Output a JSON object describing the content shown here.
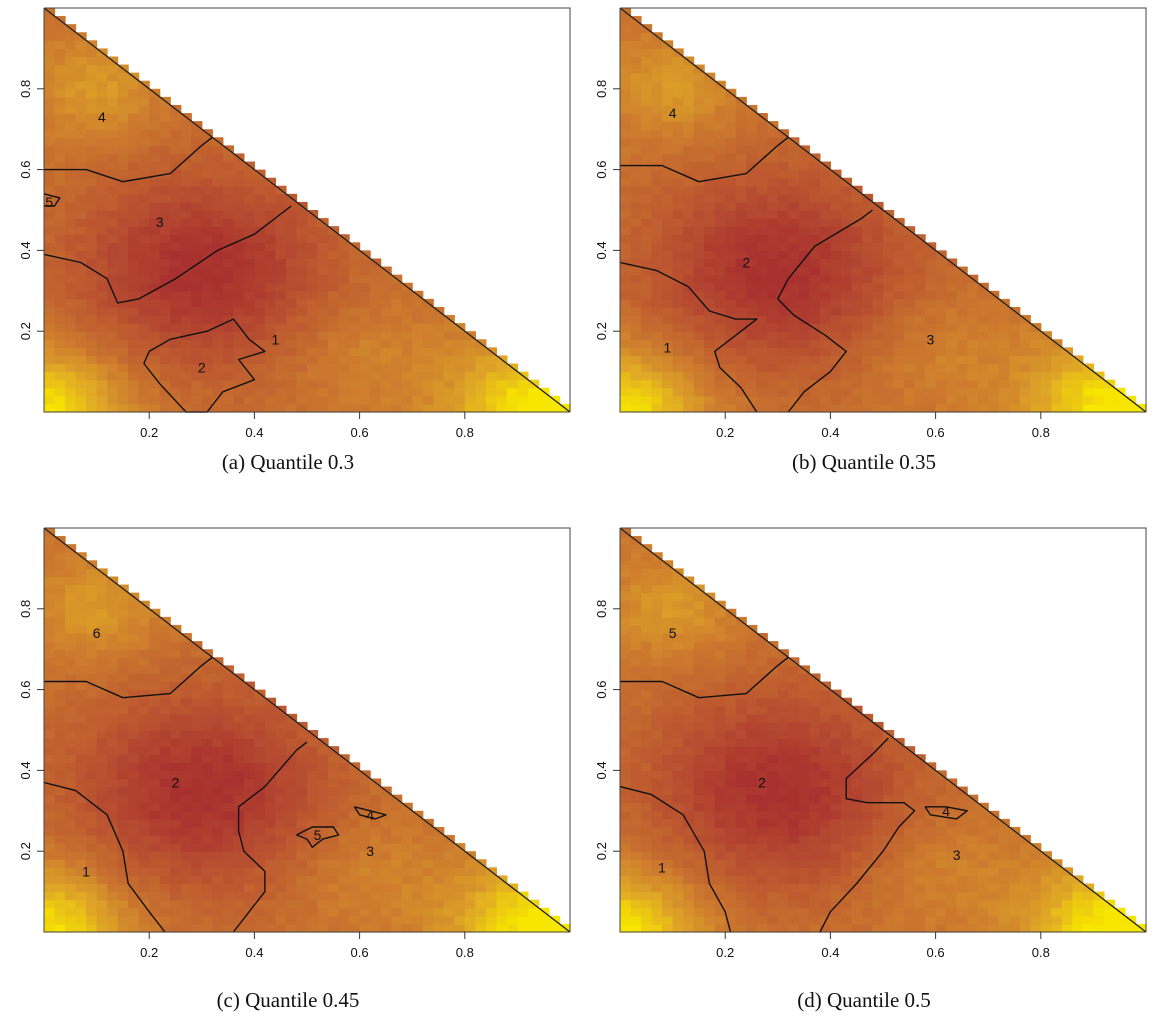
{
  "chart_data": [
    {
      "type": "heatmap",
      "caption": "(a) Quantile 0.3",
      "xlim": [
        0,
        1
      ],
      "ylim": [
        0,
        1
      ],
      "x_ticks": [
        "0.2",
        "0.4",
        "0.6",
        "0.8"
      ],
      "y_ticks": [
        "0.2",
        "0.4",
        "0.6",
        "0.8"
      ],
      "grid": false,
      "colorscale": [
        "#f7e600",
        "#e0a826",
        "#cc7a2e",
        "#bb5530",
        "#a8302f"
      ],
      "contour_labels": [
        {
          "text": "4",
          "x": 0.11,
          "y": 0.73
        },
        {
          "text": "3",
          "x": 0.22,
          "y": 0.47
        },
        {
          "text": "1",
          "x": 0.44,
          "y": 0.18
        },
        {
          "text": "2",
          "x": 0.3,
          "y": 0.11
        },
        {
          "text": "5",
          "x": 0.01,
          "y": 0.52
        }
      ],
      "contours": [
        [
          [
            0,
            0.6
          ],
          [
            0.08,
            0.6
          ],
          [
            0.15,
            0.57
          ],
          [
            0.24,
            0.59
          ],
          [
            0.3,
            0.66
          ],
          [
            0.32,
            0.68
          ]
        ],
        [
          [
            0,
            0.39
          ],
          [
            0.07,
            0.37
          ],
          [
            0.12,
            0.33
          ],
          [
            0.14,
            0.27
          ],
          [
            0.18,
            0.28
          ],
          [
            0.25,
            0.33
          ],
          [
            0.33,
            0.4
          ],
          [
            0.4,
            0.44
          ],
          [
            0.47,
            0.51
          ]
        ],
        [
          [
            0.2,
            0.15
          ],
          [
            0.24,
            0.18
          ],
          [
            0.31,
            0.2
          ],
          [
            0.36,
            0.23
          ],
          [
            0.39,
            0.18
          ],
          [
            0.42,
            0.15
          ],
          [
            0.37,
            0.13
          ],
          [
            0.4,
            0.08
          ],
          [
            0.34,
            0.05
          ],
          [
            0.31,
            0.0
          ],
          [
            0.27,
            0.0
          ],
          [
            0.22,
            0.07
          ],
          [
            0.19,
            0.12
          ],
          [
            0.2,
            0.15
          ]
        ],
        [
          [
            0,
            0.51
          ],
          [
            0.02,
            0.51
          ],
          [
            0.03,
            0.53
          ],
          [
            0,
            0.54
          ]
        ]
      ]
    },
    {
      "type": "heatmap",
      "caption": "(b) Quantile 0.35",
      "xlim": [
        0,
        1
      ],
      "ylim": [
        0,
        1
      ],
      "x_ticks": [
        "0.2",
        "0.4",
        "0.6",
        "0.8"
      ],
      "y_ticks": [
        "0.2",
        "0.4",
        "0.6",
        "0.8"
      ],
      "grid": false,
      "colorscale": [
        "#f7e600",
        "#e0a826",
        "#cc7a2e",
        "#bb5530",
        "#a8302f"
      ],
      "contour_labels": [
        {
          "text": "4",
          "x": 0.1,
          "y": 0.74
        },
        {
          "text": "2",
          "x": 0.24,
          "y": 0.37
        },
        {
          "text": "1",
          "x": 0.09,
          "y": 0.16
        },
        {
          "text": "3",
          "x": 0.59,
          "y": 0.18
        }
      ],
      "contours": [
        [
          [
            0,
            0.61
          ],
          [
            0.08,
            0.61
          ],
          [
            0.15,
            0.57
          ],
          [
            0.24,
            0.59
          ],
          [
            0.3,
            0.66
          ],
          [
            0.32,
            0.68
          ]
        ],
        [
          [
            0,
            0.37
          ],
          [
            0.07,
            0.35
          ],
          [
            0.13,
            0.31
          ],
          [
            0.17,
            0.25
          ],
          [
            0.22,
            0.23
          ],
          [
            0.26,
            0.23
          ],
          [
            0.21,
            0.18
          ],
          [
            0.18,
            0.15
          ],
          [
            0.19,
            0.11
          ],
          [
            0.23,
            0.06
          ],
          [
            0.26,
            0.0
          ]
        ],
        [
          [
            0.32,
            0.0
          ],
          [
            0.35,
            0.05
          ],
          [
            0.4,
            0.1
          ],
          [
            0.43,
            0.15
          ],
          [
            0.39,
            0.19
          ],
          [
            0.33,
            0.24
          ],
          [
            0.3,
            0.28
          ],
          [
            0.32,
            0.33
          ],
          [
            0.37,
            0.41
          ],
          [
            0.46,
            0.48
          ],
          [
            0.48,
            0.5
          ]
        ]
      ]
    },
    {
      "type": "heatmap",
      "caption": "(c) Quantile 0.45",
      "xlim": [
        0,
        1
      ],
      "ylim": [
        0,
        1
      ],
      "x_ticks": [
        "0.2",
        "0.4",
        "0.6",
        "0.8"
      ],
      "y_ticks": [
        "0.2",
        "0.4",
        "0.6",
        "0.8"
      ],
      "grid": false,
      "colorscale": [
        "#f7e600",
        "#e0a826",
        "#cc7a2e",
        "#bb5530",
        "#a8302f"
      ],
      "contour_labels": [
        {
          "text": "6",
          "x": 0.1,
          "y": 0.74
        },
        {
          "text": "2",
          "x": 0.25,
          "y": 0.37
        },
        {
          "text": "1",
          "x": 0.08,
          "y": 0.15
        },
        {
          "text": "4",
          "x": 0.62,
          "y": 0.29
        },
        {
          "text": "5",
          "x": 0.52,
          "y": 0.24
        },
        {
          "text": "3",
          "x": 0.62,
          "y": 0.2
        }
      ],
      "contours": [
        [
          [
            0,
            0.62
          ],
          [
            0.08,
            0.62
          ],
          [
            0.15,
            0.58
          ],
          [
            0.24,
            0.59
          ],
          [
            0.3,
            0.66
          ],
          [
            0.32,
            0.68
          ]
        ],
        [
          [
            0,
            0.37
          ],
          [
            0.06,
            0.35
          ],
          [
            0.12,
            0.29
          ],
          [
            0.15,
            0.2
          ],
          [
            0.16,
            0.12
          ],
          [
            0.2,
            0.05
          ],
          [
            0.23,
            0.0
          ]
        ],
        [
          [
            0.36,
            0.0
          ],
          [
            0.39,
            0.05
          ],
          [
            0.42,
            0.1
          ],
          [
            0.42,
            0.15
          ],
          [
            0.38,
            0.2
          ],
          [
            0.37,
            0.25
          ],
          [
            0.37,
            0.31
          ],
          [
            0.42,
            0.36
          ],
          [
            0.48,
            0.45
          ],
          [
            0.5,
            0.47
          ]
        ],
        [
          [
            0.59,
            0.31
          ],
          [
            0.62,
            0.3
          ],
          [
            0.65,
            0.29
          ],
          [
            0.63,
            0.28
          ],
          [
            0.6,
            0.29
          ],
          [
            0.59,
            0.31
          ]
        ],
        [
          [
            0.48,
            0.24
          ],
          [
            0.51,
            0.26
          ],
          [
            0.55,
            0.26
          ],
          [
            0.56,
            0.24
          ],
          [
            0.53,
            0.23
          ],
          [
            0.51,
            0.21
          ],
          [
            0.5,
            0.23
          ],
          [
            0.48,
            0.24
          ]
        ]
      ]
    },
    {
      "type": "heatmap",
      "caption": "(d) Quantile 0.5",
      "xlim": [
        0,
        1
      ],
      "ylim": [
        0,
        1
      ],
      "x_ticks": [
        "0.2",
        "0.4",
        "0.6",
        "0.8"
      ],
      "y_ticks": [
        "0.2",
        "0.4",
        "0.6",
        "0.8"
      ],
      "grid": false,
      "colorscale": [
        "#f7e600",
        "#e0a826",
        "#cc7a2e",
        "#bb5530",
        "#a8302f"
      ],
      "contour_labels": [
        {
          "text": "5",
          "x": 0.1,
          "y": 0.74
        },
        {
          "text": "2",
          "x": 0.27,
          "y": 0.37
        },
        {
          "text": "1",
          "x": 0.08,
          "y": 0.16
        },
        {
          "text": "4",
          "x": 0.62,
          "y": 0.3
        },
        {
          "text": "3",
          "x": 0.64,
          "y": 0.19
        }
      ],
      "contours": [
        [
          [
            0,
            0.62
          ],
          [
            0.08,
            0.62
          ],
          [
            0.15,
            0.58
          ],
          [
            0.24,
            0.59
          ],
          [
            0.3,
            0.66
          ],
          [
            0.32,
            0.68
          ]
        ],
        [
          [
            0,
            0.36
          ],
          [
            0.06,
            0.34
          ],
          [
            0.12,
            0.29
          ],
          [
            0.16,
            0.2
          ],
          [
            0.17,
            0.12
          ],
          [
            0.2,
            0.05
          ],
          [
            0.21,
            0.0
          ]
        ],
        [
          [
            0.38,
            0.0
          ],
          [
            0.4,
            0.05
          ],
          [
            0.45,
            0.12
          ],
          [
            0.5,
            0.2
          ],
          [
            0.53,
            0.26
          ],
          [
            0.56,
            0.3
          ],
          [
            0.54,
            0.32
          ],
          [
            0.47,
            0.32
          ],
          [
            0.43,
            0.33
          ],
          [
            0.43,
            0.38
          ],
          [
            0.48,
            0.44
          ],
          [
            0.51,
            0.48
          ]
        ],
        [
          [
            0.58,
            0.31
          ],
          [
            0.62,
            0.31
          ],
          [
            0.66,
            0.3
          ],
          [
            0.64,
            0.28
          ],
          [
            0.59,
            0.29
          ],
          [
            0.58,
            0.31
          ]
        ]
      ]
    }
  ]
}
